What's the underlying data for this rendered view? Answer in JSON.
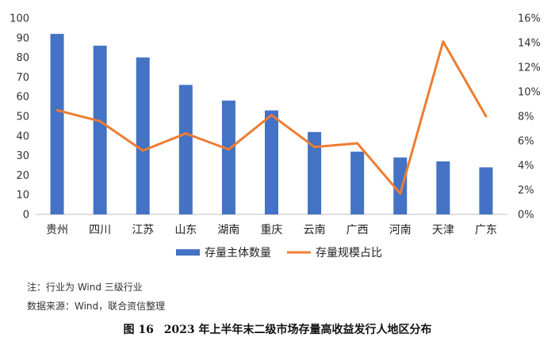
{
  "chart_data": {
    "type": "bar+line",
    "categories": [
      "贵州",
      "四川",
      "江苏",
      "山东",
      "湖南",
      "重庆",
      "云南",
      "广西",
      "河南",
      "天津",
      "广东"
    ],
    "series": [
      {
        "name": "存量主体数量",
        "type": "bar",
        "axis": "left",
        "values": [
          92,
          86,
          80,
          66,
          58,
          53,
          42,
          32,
          29,
          27,
          24
        ]
      },
      {
        "name": "存量规模占比",
        "type": "line",
        "axis": "right",
        "values": [
          0.085,
          0.076,
          0.052,
          0.066,
          0.053,
          0.081,
          0.055,
          0.058,
          0.017,
          0.141,
          0.08
        ]
      }
    ],
    "y_left": {
      "min": 0,
      "max": 100,
      "step": 10,
      "ticks": [
        "0",
        "10",
        "20",
        "30",
        "40",
        "50",
        "60",
        "70",
        "80",
        "90",
        "100"
      ]
    },
    "y_right": {
      "min": 0,
      "max": 0.16,
      "step": 0.02,
      "ticks": [
        "0%",
        "2%",
        "4%",
        "6%",
        "8%",
        "10%",
        "12%",
        "14%",
        "16%"
      ]
    },
    "grid": false,
    "legend_position": "bottom",
    "colors": {
      "bar": "#4472C4",
      "line": "#ED7D31"
    }
  },
  "notes": {
    "note1": "注：行业为 Wind 三级行业",
    "note2": "数据来源：Wind，联合资信整理"
  },
  "caption": {
    "figure_no": "图 16",
    "title": "2023 年上半年末二级市场存量高收益发行人地区分布"
  }
}
